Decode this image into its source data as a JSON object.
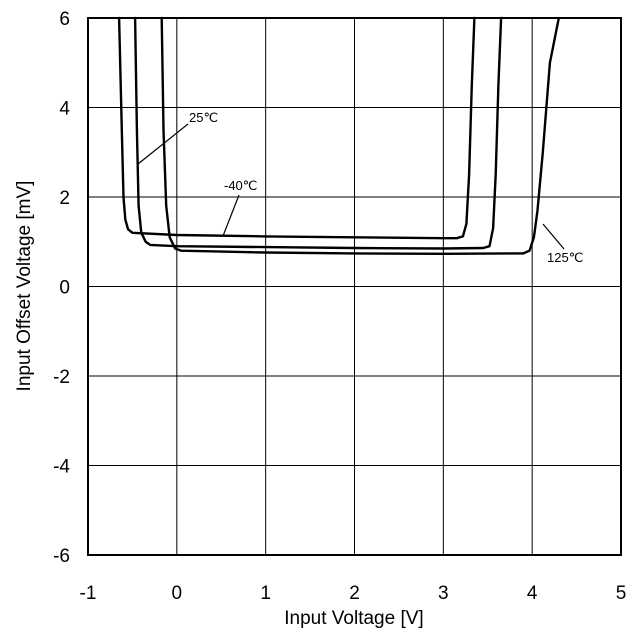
{
  "chart_data": {
    "type": "line",
    "title": "",
    "xlabel": "Input Voltage [V]",
    "ylabel": "Input Offset Voltage [mV]",
    "xlim": [
      -1,
      5
    ],
    "ylim": [
      -6,
      6
    ],
    "xticks": [
      "-1",
      "0",
      "1",
      "2",
      "3",
      "4",
      "5"
    ],
    "yticks": [
      "6",
      "4",
      "2",
      "0",
      "-2",
      "-4",
      "-6"
    ],
    "grid": true,
    "series": [
      {
        "name": "-40℃",
        "x": [
          -0.65,
          -0.62,
          -0.6,
          -0.58,
          -0.55,
          -0.5,
          0,
          1,
          2,
          3,
          3.15,
          3.22,
          3.26,
          3.29,
          3.32,
          3.35
        ],
        "y": [
          6,
          3.5,
          2,
          1.5,
          1.28,
          1.2,
          1.15,
          1.12,
          1.1,
          1.08,
          1.08,
          1.12,
          1.4,
          2.5,
          4.5,
          6
        ]
      },
      {
        "name": "25℃",
        "x": [
          -0.47,
          -0.45,
          -0.43,
          -0.4,
          -0.35,
          -0.3,
          0,
          1,
          2,
          3,
          3.45,
          3.52,
          3.56,
          3.59,
          3.62,
          3.65
        ],
        "y": [
          6,
          3.5,
          1.8,
          1.2,
          1.0,
          0.93,
          0.9,
          0.88,
          0.86,
          0.85,
          0.86,
          0.9,
          1.3,
          2.5,
          4.5,
          6
        ]
      },
      {
        "name": "125℃",
        "x": [
          -0.17,
          -0.15,
          -0.12,
          -0.08,
          -0.02,
          0.05,
          0.5,
          1,
          2,
          3,
          3.9,
          3.97,
          4.02,
          4.06,
          4.12,
          4.2,
          4.3
        ],
        "y": [
          6,
          3.5,
          1.8,
          1.1,
          0.85,
          0.8,
          0.78,
          0.76,
          0.74,
          0.73,
          0.74,
          0.8,
          1.1,
          1.7,
          3,
          5,
          6
        ]
      }
    ],
    "annotations": [
      {
        "text": "25℃",
        "series": "25℃"
      },
      {
        "text": "-40℃",
        "series": "-40℃"
      },
      {
        "text": "125℃",
        "series": "125℃"
      }
    ]
  }
}
